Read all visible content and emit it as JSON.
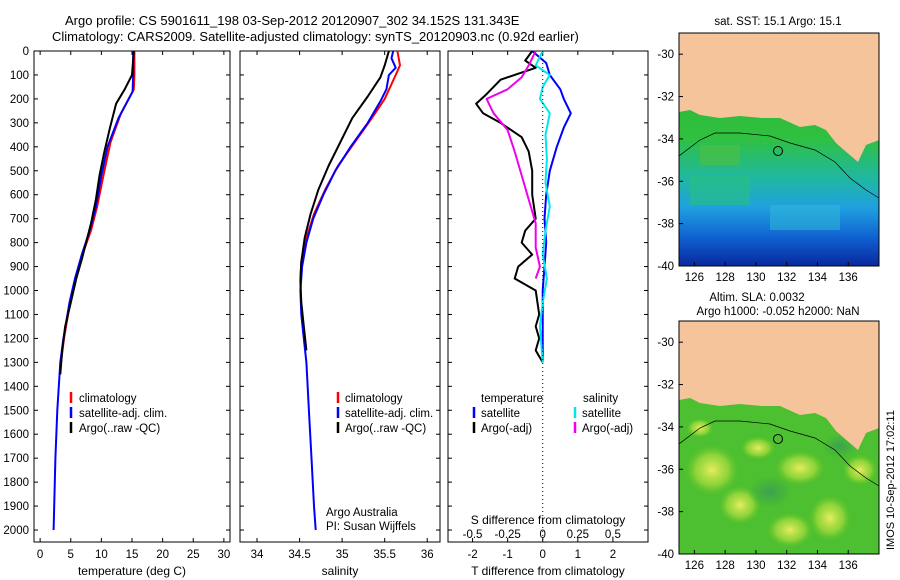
{
  "header": {
    "title_line1": "Argo profile: CS 5901611_198 03-Sep-2012 20120907_302 34.152S 131.343E",
    "title_line2": "Climatology: CARS2009. Satellite-adjusted climatology: synTS_20120903.nc (0.92d earlier)"
  },
  "colors": {
    "climatology": "#ff0000",
    "satellite": "#0000ff",
    "argo": "#000000",
    "salinity_satellite": "#00e5ee",
    "salinity_argo": "#ee00ee",
    "land": "#f5c49a"
  },
  "chart_data": [
    {
      "type": "line",
      "name": "temperature-profile",
      "xlabel": "temperature (deg C)",
      "xlim": [
        -1,
        31
      ],
      "ylim": [
        2050,
        0
      ],
      "x_ticks": [
        0,
        5,
        10,
        15,
        20,
        25,
        30
      ],
      "y_ticks": [
        0,
        100,
        200,
        300,
        400,
        500,
        600,
        700,
        800,
        900,
        1000,
        1100,
        1200,
        1300,
        1400,
        1500,
        1600,
        1700,
        1800,
        1900,
        2000
      ],
      "legend": [
        "climatology",
        "satellite-adj. clim.",
        "Argo(..raw -QC)"
      ],
      "series": [
        {
          "name": "climatology",
          "color": "#ff0000",
          "points": [
            [
              15.4,
              0
            ],
            [
              15.4,
              100
            ],
            [
              15.3,
              160
            ],
            [
              13.2,
              260
            ],
            [
              11.5,
              380
            ],
            [
              10.5,
              500
            ],
            [
              9.3,
              650
            ],
            [
              8.3,
              750
            ],
            [
              6.9,
              850
            ],
            [
              5.8,
              950
            ],
            [
              4.9,
              1050
            ],
            [
              3.9,
              1200
            ],
            [
              3.4,
              1300
            ]
          ]
        },
        {
          "name": "satellite-adj. clim.",
          "color": "#0000ff",
          "points": [
            [
              15.2,
              0
            ],
            [
              15.2,
              100
            ],
            [
              15.1,
              170
            ],
            [
              12.8,
              280
            ],
            [
              11.0,
              400
            ],
            [
              10.0,
              520
            ],
            [
              9.1,
              650
            ],
            [
              8.1,
              750
            ],
            [
              6.8,
              850
            ],
            [
              5.7,
              950
            ],
            [
              4.8,
              1050
            ],
            [
              3.8,
              1200
            ],
            [
              3.3,
              1300
            ],
            [
              2.8,
              1500
            ],
            [
              2.5,
              1700
            ],
            [
              2.3,
              1900
            ],
            [
              2.2,
              2000
            ]
          ]
        },
        {
          "name": "Argo(..raw -QC)",
          "color": "#000000",
          "points": [
            [
              15.3,
              0
            ],
            [
              15.0,
              100
            ],
            [
              13.8,
              160
            ],
            [
              12.4,
              220
            ],
            [
              11.4,
              320
            ],
            [
              10.5,
              420
            ],
            [
              9.7,
              520
            ],
            [
              9.1,
              620
            ],
            [
              8.3,
              720
            ],
            [
              7.5,
              800
            ],
            [
              6.8,
              870
            ],
            [
              5.9,
              950
            ],
            [
              5.0,
              1050
            ],
            [
              4.1,
              1150
            ],
            [
              3.6,
              1250
            ],
            [
              3.3,
              1350
            ]
          ]
        }
      ]
    },
    {
      "type": "line",
      "name": "salinity-profile",
      "xlabel": "salinity",
      "xlim": [
        33.8,
        36.15
      ],
      "ylim": [
        2050,
        0
      ],
      "x_ticks": [
        34,
        34.5,
        35,
        35.5,
        36
      ],
      "legend": [
        "climatology",
        "satellite-adj. clim.",
        "Argo(..raw -QC)"
      ],
      "annotation": [
        "Argo Australia",
        "PI: Susan Wijffels"
      ],
      "series": [
        {
          "name": "climatology",
          "color": "#ff0000",
          "points": [
            [
              35.65,
              0
            ],
            [
              35.68,
              60
            ],
            [
              35.63,
              100
            ],
            [
              35.5,
              200
            ],
            [
              35.35,
              280
            ],
            [
              35.15,
              380
            ],
            [
              34.95,
              480
            ],
            [
              34.8,
              580
            ],
            [
              34.67,
              680
            ],
            [
              34.58,
              780
            ],
            [
              34.52,
              880
            ],
            [
              34.51,
              950
            ]
          ]
        },
        {
          "name": "satellite-adj. clim.",
          "color": "#0000ff",
          "points": [
            [
              35.6,
              0
            ],
            [
              35.58,
              30
            ],
            [
              35.63,
              70
            ],
            [
              35.55,
              100
            ],
            [
              35.52,
              160
            ],
            [
              35.45,
              210
            ],
            [
              35.3,
              300
            ],
            [
              35.1,
              400
            ],
            [
              34.92,
              500
            ],
            [
              34.78,
              600
            ],
            [
              34.66,
              700
            ],
            [
              34.58,
              800
            ],
            [
              34.53,
              900
            ],
            [
              34.51,
              1000
            ],
            [
              34.52,
              1100
            ],
            [
              34.55,
              1200
            ],
            [
              34.58,
              1300
            ],
            [
              34.61,
              1500
            ],
            [
              34.64,
              1700
            ],
            [
              34.67,
              1900
            ],
            [
              34.69,
              2000
            ]
          ]
        },
        {
          "name": "Argo(..raw -QC)",
          "color": "#000000",
          "points": [
            [
              35.55,
              0
            ],
            [
              35.5,
              60
            ],
            [
              35.45,
              110
            ],
            [
              35.3,
              190
            ],
            [
              35.12,
              280
            ],
            [
              34.98,
              380
            ],
            [
              34.84,
              480
            ],
            [
              34.72,
              580
            ],
            [
              34.63,
              680
            ],
            [
              34.56,
              780
            ],
            [
              34.52,
              880
            ],
            [
              34.51,
              960
            ],
            [
              34.52,
              1050
            ],
            [
              34.55,
              1150
            ],
            [
              34.58,
              1250
            ]
          ]
        }
      ]
    },
    {
      "type": "line",
      "name": "difference-profile",
      "xlabel_bottom": "T difference from climatology",
      "xlabel_top": "S difference from climatology",
      "xlim_T": [
        -2.7,
        3.0
      ],
      "x_ticks_T": [
        -2,
        -1,
        0,
        1,
        2
      ],
      "x_ticks_S": [
        -0.5,
        -0.25,
        0,
        0.25,
        0.5
      ],
      "x_ticks_S_labels": [
        "-0.5",
        "-0.25",
        "0",
        "0.25",
        "0.5"
      ],
      "ylim": [
        2050,
        0
      ],
      "legend_temperature": {
        "heading": "temperature",
        "items": [
          "satellite",
          "Argo(-adj)"
        ]
      },
      "legend_salinity": {
        "heading": "salinity",
        "items": [
          "satellite",
          "Argo(-adj)"
        ]
      },
      "series": [
        {
          "name": "temperature satellite",
          "color": "#0000ff",
          "points": [
            [
              -0.3,
              0
            ],
            [
              0.1,
              50
            ],
            [
              0.2,
              100
            ],
            [
              0.5,
              160
            ],
            [
              0.6,
              200
            ],
            [
              0.8,
              260
            ],
            [
              0.6,
              320
            ],
            [
              0.4,
              400
            ],
            [
              0.2,
              500
            ],
            [
              0.1,
              600
            ],
            [
              0.05,
              700
            ],
            [
              0.1,
              800
            ],
            [
              0.05,
              900
            ],
            [
              0.0,
              1000
            ],
            [
              0.0,
              1100
            ],
            [
              0.0,
              1200
            ],
            [
              0.0,
              1300
            ]
          ]
        },
        {
          "name": "temperature Argo(-adj)",
          "color": "#000000",
          "points": [
            [
              -0.3,
              0
            ],
            [
              -0.5,
              40
            ],
            [
              -0.2,
              70
            ],
            [
              -1.2,
              120
            ],
            [
              -1.6,
              180
            ],
            [
              -1.9,
              220
            ],
            [
              -1.7,
              260
            ],
            [
              -1.2,
              300
            ],
            [
              -0.6,
              360
            ],
            [
              -0.4,
              420
            ],
            [
              -0.3,
              500
            ],
            [
              -0.3,
              600
            ],
            [
              -0.2,
              700
            ],
            [
              -0.5,
              750
            ],
            [
              -0.6,
              800
            ],
            [
              -0.3,
              850
            ],
            [
              -0.7,
              900
            ],
            [
              -0.8,
              950
            ],
            [
              -0.2,
              1000
            ],
            [
              -0.1,
              1100
            ],
            [
              -0.2,
              1150
            ],
            [
              -0.1,
              1200
            ],
            [
              -0.2,
              1250
            ],
            [
              0.0,
              1300
            ]
          ]
        },
        {
          "name": "salinity satellite",
          "color": "#00e5ee",
          "points": [
            [
              0.0,
              0
            ],
            [
              -0.05,
              60
            ],
            [
              0.05,
              100
            ],
            [
              0.0,
              150
            ],
            [
              -0.02,
              200
            ],
            [
              0.05,
              260
            ],
            [
              0.02,
              350
            ],
            [
              0.03,
              450
            ],
            [
              0.02,
              550
            ],
            [
              0.05,
              650
            ],
            [
              0.02,
              750
            ],
            [
              0.0,
              850
            ],
            [
              0.03,
              950
            ],
            [
              0.0,
              1050
            ],
            [
              -0.02,
              1150
            ],
            [
              0.0,
              1300
            ]
          ]
        },
        {
          "name": "salinity Argo(-adj)",
          "color": "#ee00ee",
          "points": [
            [
              -0.05,
              0
            ],
            [
              -0.1,
              60
            ],
            [
              -0.15,
              110
            ],
            [
              -0.25,
              160
            ],
            [
              -0.4,
              200
            ],
            [
              -0.35,
              260
            ],
            [
              -0.25,
              330
            ],
            [
              -0.2,
              420
            ],
            [
              -0.15,
              520
            ],
            [
              -0.1,
              620
            ],
            [
              -0.05,
              720
            ],
            [
              -0.05,
              820
            ],
            [
              -0.02,
              900
            ],
            [
              -0.05,
              950
            ]
          ]
        }
      ]
    },
    {
      "type": "heatmap",
      "name": "sst-map",
      "title": "sat. SST: 15.1  Argo: 15.1",
      "xlim": [
        125,
        138
      ],
      "ylim": [
        -40,
        -29
      ],
      "x_ticks": [
        126,
        128,
        130,
        132,
        134,
        136
      ],
      "y_ticks": [
        -30,
        -32,
        -34,
        -36,
        -38,
        -40
      ],
      "argo_position": [
        131.343,
        -34.152
      ]
    },
    {
      "type": "heatmap",
      "name": "sla-map",
      "title_line1": "Altim. SLA: 0.0032",
      "title_line2": "Argo h1000: -0.052 h2000: NaN",
      "xlim": [
        125,
        138
      ],
      "ylim": [
        -40,
        -29
      ],
      "x_ticks": [
        126,
        128,
        130,
        132,
        134,
        136
      ],
      "y_ticks": [
        -30,
        -32,
        -34,
        -36,
        -38,
        -40
      ],
      "argo_position": [
        131.343,
        -34.152
      ]
    }
  ],
  "footer": {
    "timestamp": "IMOS 10-Sep-2012 17:02:11"
  }
}
